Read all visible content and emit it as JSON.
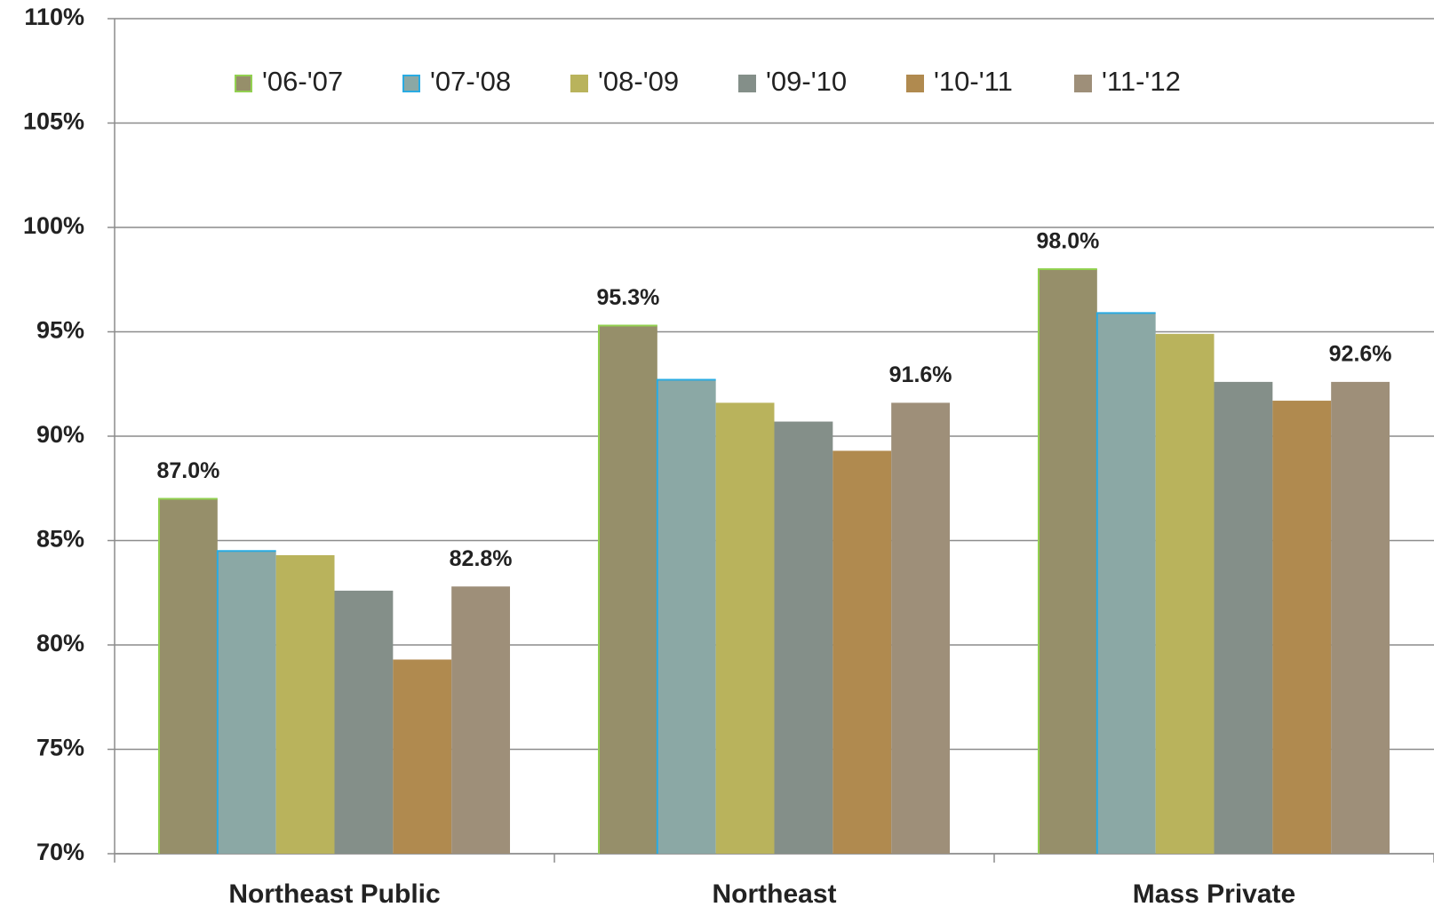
{
  "chart_data": {
    "type": "bar",
    "categories": [
      "Northeast Public",
      "Northeast",
      "Mass Private"
    ],
    "series": [
      {
        "name": "'06-'07",
        "color": "#968f6a",
        "edgecolor": "#92d050",
        "values": [
          87.0,
          95.3,
          98.0
        ],
        "value_labels": [
          "87.0%",
          "95.3%",
          "98.0%"
        ]
      },
      {
        "name": "'07-'08",
        "color": "#8ba8a5",
        "edgecolor": "#29abe2",
        "values": [
          84.5,
          92.7,
          95.9
        ]
      },
      {
        "name": "'08-'09",
        "color": "#b9b35c",
        "values": [
          84.3,
          91.6,
          94.9
        ]
      },
      {
        "name": "'09-'10",
        "color": "#848f89",
        "values": [
          82.6,
          90.7,
          92.6
        ]
      },
      {
        "name": "'10-'11",
        "color": "#b08a4f",
        "values": [
          79.3,
          89.3,
          91.7
        ]
      },
      {
        "name": "'11-'12",
        "color": "#9e8f79",
        "values": [
          82.8,
          91.6,
          92.6
        ],
        "value_labels": [
          "82.8%",
          "91.6%",
          "92.6%"
        ]
      }
    ],
    "ylim": [
      70,
      110
    ],
    "yticks": [
      {
        "value": 70,
        "label": "70%"
      },
      {
        "value": 75,
        "label": "75%"
      },
      {
        "value": 80,
        "label": "80%"
      },
      {
        "value": 85,
        "label": "85%"
      },
      {
        "value": 90,
        "label": "90%"
      },
      {
        "value": 95,
        "label": "95%"
      },
      {
        "value": 100,
        "label": "100%"
      },
      {
        "value": 105,
        "label": "105%"
      },
      {
        "value": 110,
        "label": "110%"
      }
    ],
    "grid": true,
    "legend": "top"
  }
}
